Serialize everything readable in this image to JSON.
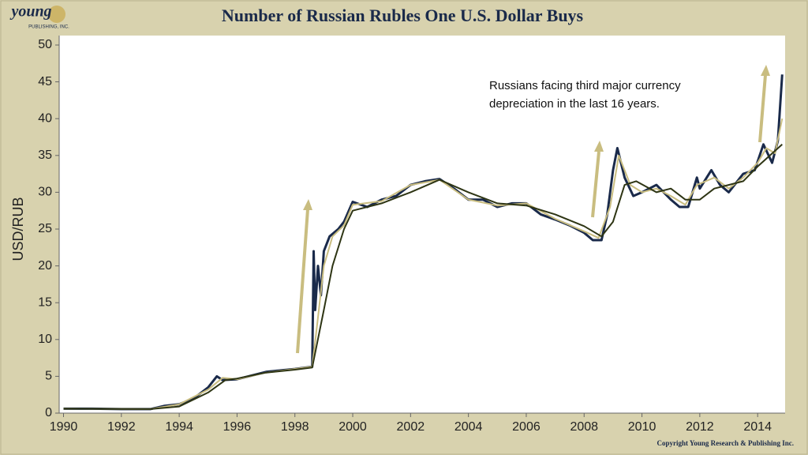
{
  "logo": {
    "name": "young",
    "sub": "PUBLISHING, INC."
  },
  "chart_data": {
    "type": "line",
    "title": "Number of Russian Rubles One U.S. Dollar Buys",
    "y_label": "USD/RUB",
    "annotation": [
      "Russians facing third major currency",
      "depreciation in the last 16 years."
    ],
    "copyright": "Copyright Young Research & Publishing Inc.",
    "xlim": [
      1989.85,
      2014.95
    ],
    "xticks": [
      1990,
      1992,
      1994,
      1996,
      1998,
      2000,
      2002,
      2004,
      2006,
      2008,
      2010,
      2012,
      2014
    ],
    "ylim": [
      0,
      50
    ],
    "yticks": [
      0,
      5,
      10,
      15,
      20,
      25,
      30,
      35,
      40,
      45,
      50
    ],
    "series": [
      {
        "color": "#1a2a4a",
        "x": [
          1990,
          1991,
          1992,
          1993,
          1993.5,
          1994,
          1994.5,
          1995,
          1995.3,
          1995.5,
          1996,
          1996.5,
          1997,
          1997.5,
          1998,
          1998.6,
          1998.65,
          1998.7,
          1998.8,
          1998.9,
          1999,
          1999.2,
          1999.5,
          1999.7,
          2000,
          2000.5,
          2001,
          2001.5,
          2002,
          2002.5,
          2003,
          2003.5,
          2004,
          2004.5,
          2005,
          2005.5,
          2006,
          2006.5,
          2007,
          2007.5,
          2008,
          2008.3,
          2008.6,
          2008.8,
          2009,
          2009.15,
          2009.4,
          2009.7,
          2010,
          2010.5,
          2011,
          2011.3,
          2011.6,
          2011.9,
          2012,
          2012.4,
          2012.7,
          2013,
          2013.5,
          2013.9,
          2014.2,
          2014.5,
          2014.7,
          2014.85
        ],
        "values": [
          0.6,
          0.6,
          0.55,
          0.55,
          1.0,
          1.2,
          2.0,
          3.5,
          5.0,
          4.5,
          4.6,
          5.1,
          5.6,
          5.8,
          6.0,
          6.3,
          22,
          14,
          20,
          16,
          22,
          24,
          25,
          26,
          28.7,
          28,
          29,
          29.5,
          31,
          31.5,
          31.8,
          30.5,
          29,
          29,
          28,
          28.5,
          28.5,
          27,
          26.3,
          25.5,
          24.5,
          23.5,
          23.5,
          27,
          33,
          36,
          32,
          29.5,
          30,
          31,
          29,
          28,
          28,
          32,
          30.5,
          33,
          31,
          30,
          32.5,
          33,
          36.5,
          34,
          37,
          46
        ]
      },
      {
        "color": "#c9bd80",
        "x": [
          1990,
          1993,
          1994,
          1995,
          1995.5,
          1996,
          1997,
          1998,
          1998.6,
          1998.8,
          1999,
          1999.3,
          1999.7,
          2000,
          2001,
          2002,
          2003,
          2004,
          2005,
          2006,
          2007,
          2008,
          2008.5,
          2008.9,
          2009.2,
          2009.6,
          2010,
          2010.5,
          2011,
          2011.5,
          2011.9,
          2012.5,
          2013,
          2013.5,
          2014,
          2014.3,
          2014.6,
          2014.85
        ],
        "values": [
          0.6,
          0.55,
          1.2,
          3.2,
          4.8,
          4.6,
          5.5,
          6.0,
          6.3,
          13,
          20,
          24,
          25.5,
          28.3,
          28.8,
          31,
          31.7,
          29,
          28.2,
          28.5,
          26.4,
          24.7,
          23.8,
          28,
          35,
          31,
          30,
          30.5,
          29.5,
          28.3,
          31,
          32,
          30.5,
          32,
          34,
          36,
          35.3,
          40
        ]
      },
      {
        "color": "#2e3514",
        "x": [
          1990,
          1993,
          1994,
          1995,
          1995.6,
          1996,
          1997,
          1998,
          1998.6,
          1999,
          1999.3,
          1999.7,
          2000,
          2001,
          2002,
          2003,
          2004,
          2005,
          2006,
          2007,
          2008,
          2008.6,
          2009,
          2009.4,
          2009.8,
          2010.5,
          2011,
          2011.5,
          2012,
          2012.5,
          2013,
          2013.5,
          2014,
          2014.85
        ],
        "values": [
          0.6,
          0.55,
          0.9,
          2.8,
          4.5,
          4.7,
          5.5,
          5.9,
          6.2,
          14,
          20,
          25,
          27.5,
          28.5,
          30,
          31.7,
          30,
          28.5,
          28.2,
          27,
          25.4,
          24,
          26,
          31,
          31.5,
          30,
          30.5,
          29,
          29,
          30.5,
          31,
          31.5,
          33.5,
          36.5
        ]
      }
    ]
  }
}
